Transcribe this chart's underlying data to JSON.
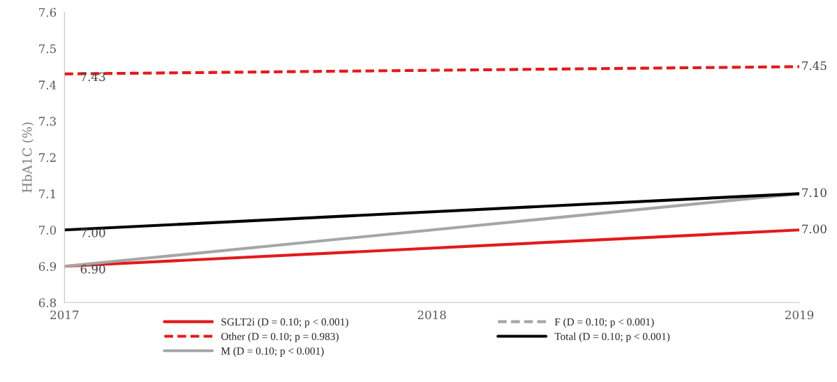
{
  "chart_data": {
    "type": "line",
    "ylabel": "HbA1C (%)",
    "x": [
      2017,
      2019
    ],
    "xlim": [
      2017,
      2019
    ],
    "xticks": [
      2017,
      2018,
      2019
    ],
    "ylim": [
      6.8,
      7.6
    ],
    "yticks": [
      {
        "value": 6.8,
        "label": "6.8"
      },
      {
        "value": 6.9,
        "label": "6.9"
      },
      {
        "value": 7.0,
        "label": "7.0"
      },
      {
        "value": 7.1,
        "label": "7.1"
      },
      {
        "value": 7.2,
        "label": "7.2"
      },
      {
        "value": 7.3,
        "label": "7.3"
      },
      {
        "value": 7.4,
        "label": "7.4"
      },
      {
        "value": 7.5,
        "label": "7.5"
      },
      {
        "value": 7.6,
        "label": "7.6"
      }
    ],
    "grid": false,
    "legend": "bottom",
    "marker": "none",
    "series": [
      {
        "name": "SGLT2i (D = 0.10; p < 0.001)",
        "color": "#e31a1c",
        "values": [
          6.9,
          7.0
        ],
        "value_labels": [
          "6.90",
          "7.00"
        ],
        "line_style": "solid"
      },
      {
        "name": "Other (D = 0.10; p = 0.983)",
        "color": "#e31a1c",
        "values": [
          7.43,
          7.45
        ],
        "value_labels": [
          "7.43",
          "7.45"
        ],
        "line_style": "dashed"
      },
      {
        "name": "M (D = 0.10; p < 0.001)",
        "color": "#a6a6a6",
        "values": [
          6.9,
          7.1
        ],
        "value_labels": [
          null,
          "7.10"
        ],
        "line_style": "solid"
      },
      {
        "name": "F (D = 0.10; p < 0.001)",
        "color": "#a6a6a6",
        "values": [
          null,
          null
        ],
        "line_style": "dashed"
      },
      {
        "name": "Total (D = 0.10; p < 0.001)",
        "color": "#000000",
        "values": [
          7.0,
          7.1
        ],
        "value_labels": [
          "7.00",
          null
        ],
        "line_style": "solid"
      }
    ]
  }
}
